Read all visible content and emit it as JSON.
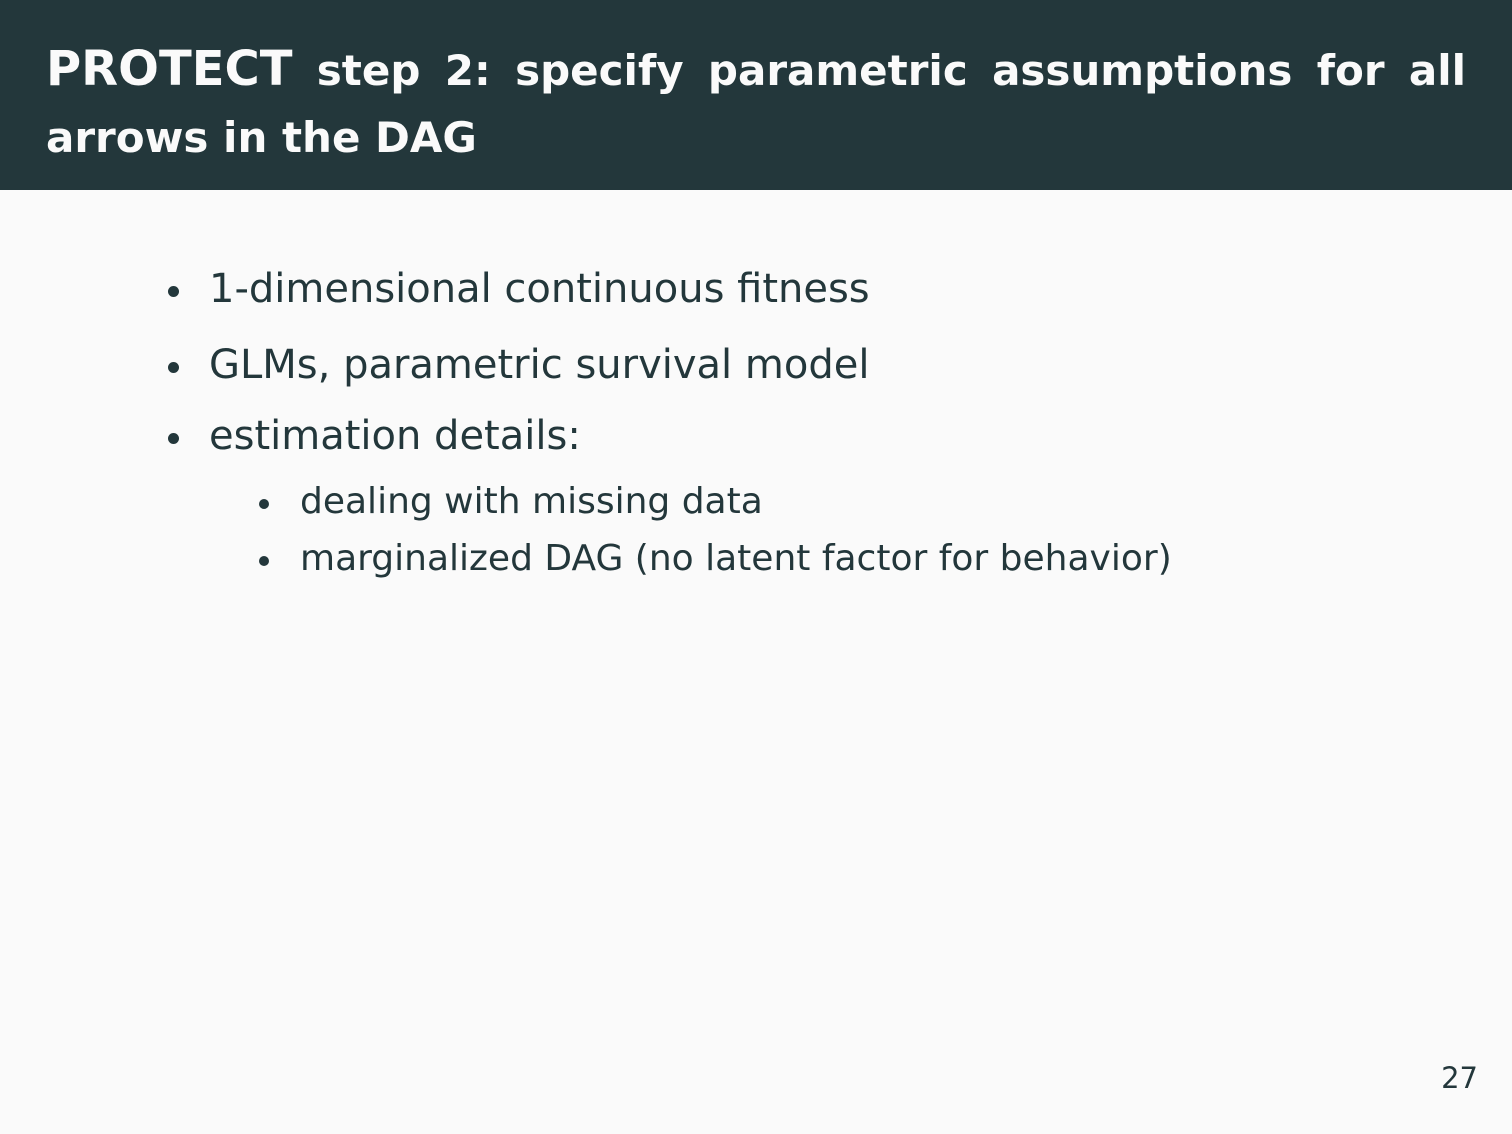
{
  "slide": {
    "title_lead": "PROTECT",
    "title_rest": "step 2: specify parametric assumptions for all arrows in the DAG",
    "bullets": [
      "1-dimensional continuous fitness",
      "GLMs, parametric survival model",
      "estimation details:"
    ],
    "sub_bullets": [
      "dealing with missing data",
      "marginalized DAG (no latent factor for behavior)"
    ],
    "page_number": "27"
  },
  "colors": {
    "title_background": "#23373b",
    "title_text": "#fafafa",
    "body_background": "#fafafa",
    "body_text": "#23373b"
  }
}
